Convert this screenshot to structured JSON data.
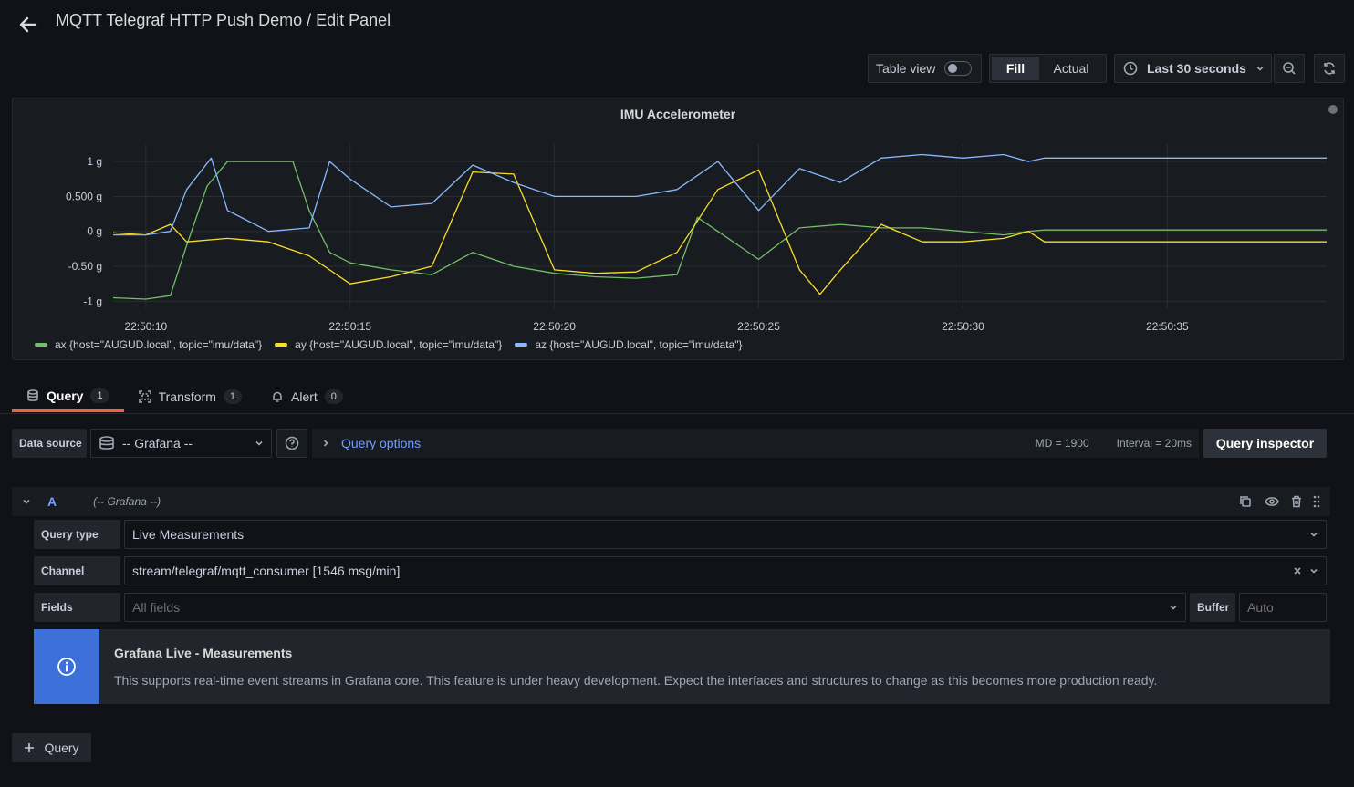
{
  "header": {
    "title": "MQTT Telegraf HTTP Push Demo / Edit Panel"
  },
  "toolbar": {
    "table_view_label": "Table view",
    "fill_label": "Fill",
    "actual_label": "Actual",
    "time_range_label": "Last 30 seconds"
  },
  "panel": {
    "title": "IMU Accelerometer",
    "y_ticks": [
      "1 g",
      "0.500 g",
      "0 g",
      "-0.50 g",
      "-1 g"
    ],
    "x_ticks": [
      "22:50:10",
      "22:50:15",
      "22:50:20",
      "22:50:25",
      "22:50:30",
      "22:50:35"
    ],
    "legend": [
      {
        "label": "ax {host=\"AUGUD.local\", topic=\"imu/data\"}",
        "color": "#73bf69"
      },
      {
        "label": "ay {host=\"AUGUD.local\", topic=\"imu/data\"}",
        "color": "#fade2a"
      },
      {
        "label": "az {host=\"AUGUD.local\", topic=\"imu/data\"}",
        "color": "#8ab8ff"
      }
    ]
  },
  "chart_data": {
    "type": "line",
    "title": "IMU Accelerometer",
    "x_unit": "time",
    "ylim": [
      -1.1,
      1.25
    ],
    "y_ticks": [
      1,
      0.5,
      0,
      -0.5,
      -1
    ],
    "x_ticks": [
      "22:50:10",
      "22:50:15",
      "22:50:20",
      "22:50:25",
      "22:50:30",
      "22:50:35"
    ],
    "xlim": [
      "22:50:09.2",
      "22:50:38.9"
    ],
    "grid": true,
    "legend_position": "bottom",
    "series": [
      {
        "name": "ax {host=\"AUGUD.local\", topic=\"imu/data\"}",
        "color": "#73bf69",
        "x": [
          "22:50:09.2",
          "22:50:10.0",
          "22:50:10.6",
          "22:50:11.0",
          "22:50:11.5",
          "22:50:12.0",
          "22:50:13.0",
          "22:50:13.6",
          "22:50:14.0",
          "22:50:14.5",
          "22:50:15.0",
          "22:50:16.0",
          "22:50:17.0",
          "22:50:18.0",
          "22:50:19.0",
          "22:50:20.0",
          "22:50:21.0",
          "22:50:22.0",
          "22:50:23.0",
          "22:50:23.5",
          "22:50:24.0",
          "22:50:25.0",
          "22:50:26.0",
          "22:50:27.0",
          "22:50:28.0",
          "22:50:29.0",
          "22:50:30.0",
          "22:50:31.0",
          "22:50:31.6",
          "22:50:32.0",
          "22:50:35.0",
          "22:50:38.9"
        ],
        "y": [
          -0.95,
          -0.97,
          -0.92,
          -0.2,
          0.65,
          1.0,
          1.0,
          1.0,
          0.3,
          -0.3,
          -0.45,
          -0.55,
          -0.62,
          -0.3,
          -0.5,
          -0.6,
          -0.65,
          -0.67,
          -0.62,
          0.2,
          0.0,
          -0.4,
          0.05,
          0.1,
          0.05,
          0.05,
          0.0,
          -0.05,
          0.0,
          0.02,
          0.02,
          0.02
        ]
      },
      {
        "name": "ay {host=\"AUGUD.local\", topic=\"imu/data\"}",
        "color": "#fade2a",
        "x": [
          "22:50:09.2",
          "22:50:10.0",
          "22:50:10.6",
          "22:50:11.0",
          "22:50:12.0",
          "22:50:13.0",
          "22:50:14.0",
          "22:50:15.0",
          "22:50:16.0",
          "22:50:17.0",
          "22:50:18.0",
          "22:50:19.0",
          "22:50:20.0",
          "22:50:21.0",
          "22:50:22.0",
          "22:50:23.0",
          "22:50:24.0",
          "22:50:25.0",
          "22:50:26.0",
          "22:50:26.5",
          "22:50:27.0",
          "22:50:28.0",
          "22:50:29.0",
          "22:50:30.0",
          "22:50:31.0",
          "22:50:31.6",
          "22:50:32.0",
          "22:50:35.0",
          "22:50:38.9"
        ],
        "y": [
          -0.02,
          -0.05,
          0.1,
          -0.15,
          -0.1,
          -0.15,
          -0.35,
          -0.75,
          -0.65,
          -0.5,
          0.85,
          0.82,
          -0.55,
          -0.6,
          -0.58,
          -0.3,
          0.6,
          0.88,
          -0.55,
          -0.9,
          -0.55,
          0.1,
          -0.15,
          -0.15,
          -0.1,
          0.0,
          -0.15,
          -0.15,
          -0.15
        ]
      },
      {
        "name": "az {host=\"AUGUD.local\", topic=\"imu/data\"}",
        "color": "#8ab8ff",
        "x": [
          "22:50:09.2",
          "22:50:10.0",
          "22:50:10.6",
          "22:50:11.0",
          "22:50:11.6",
          "22:50:12.0",
          "22:50:13.0",
          "22:50:14.0",
          "22:50:14.5",
          "22:50:15.0",
          "22:50:16.0",
          "22:50:17.0",
          "22:50:18.0",
          "22:50:19.0",
          "22:50:20.0",
          "22:50:21.0",
          "22:50:22.0",
          "22:50:23.0",
          "22:50:24.0",
          "22:50:25.0",
          "22:50:26.0",
          "22:50:27.0",
          "22:50:28.0",
          "22:50:29.0",
          "22:50:30.0",
          "22:50:31.0",
          "22:50:31.6",
          "22:50:32.0",
          "22:50:35.0",
          "22:50:38.9"
        ],
        "y": [
          -0.05,
          -0.05,
          0.0,
          0.6,
          1.05,
          0.3,
          0.0,
          0.05,
          1.0,
          0.75,
          0.35,
          0.4,
          0.95,
          0.7,
          0.5,
          0.5,
          0.5,
          0.6,
          1.0,
          0.3,
          0.9,
          0.7,
          1.05,
          1.1,
          1.05,
          1.1,
          1.0,
          1.05,
          1.05,
          1.05
        ]
      }
    ]
  },
  "tabs": [
    {
      "label": "Query",
      "count": "1"
    },
    {
      "label": "Transform",
      "count": "1"
    },
    {
      "label": "Alert",
      "count": "0"
    }
  ],
  "datasource": {
    "label": "Data source",
    "value": "-- Grafana --",
    "query_options_label": "Query options",
    "md": "MD = 1900",
    "interval": "Interval = 20ms",
    "inspector_label": "Query inspector"
  },
  "query_row": {
    "ref_id": "A",
    "datasource_hint": "(-- Grafana --)",
    "query_type_label": "Query type",
    "query_type_value": "Live Measurements",
    "channel_label": "Channel",
    "channel_value": "stream/telegraf/mqtt_consumer [1546 msg/min]",
    "fields_label": "Fields",
    "fields_placeholder": "All fields",
    "buffer_label": "Buffer",
    "buffer_placeholder": "Auto"
  },
  "info": {
    "title": "Grafana Live - Measurements",
    "body": "This supports real-time event streams in Grafana core. This feature is under heavy development. Expect the interfaces and structures to change as this becomes more production ready."
  },
  "add_query_label": "Query"
}
